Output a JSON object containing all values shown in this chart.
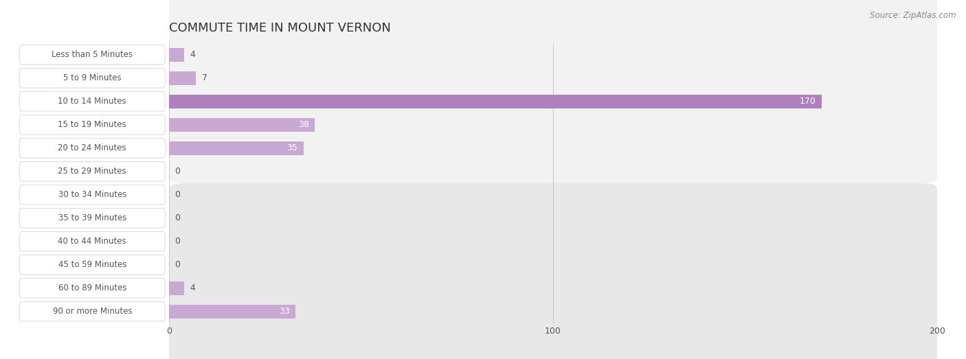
{
  "title": "COMMUTE TIME IN MOUNT VERNON",
  "source": "Source: ZipAtlas.com",
  "categories": [
    "Less than 5 Minutes",
    "5 to 9 Minutes",
    "10 to 14 Minutes",
    "15 to 19 Minutes",
    "20 to 24 Minutes",
    "25 to 29 Minutes",
    "30 to 34 Minutes",
    "35 to 39 Minutes",
    "40 to 44 Minutes",
    "45 to 59 Minutes",
    "60 to 89 Minutes",
    "90 or more Minutes"
  ],
  "values": [
    4,
    7,
    170,
    38,
    35,
    0,
    0,
    0,
    0,
    0,
    4,
    33
  ],
  "bar_color_normal": "#c9a8d4",
  "bar_color_highlight": "#b07fc0",
  "row_bg_color_odd": "#f2f2f2",
  "row_bg_color_even": "#e8e8e8",
  "label_color": "#555555",
  "title_color": "#333333",
  "source_color": "#888888",
  "value_label_color_inside": "#ffffff",
  "value_label_color_outside": "#555555",
  "xlim": [
    0,
    200
  ],
  "xticks": [
    0,
    100,
    200
  ],
  "figsize": [
    14.06,
    5.23
  ],
  "dpi": 100
}
